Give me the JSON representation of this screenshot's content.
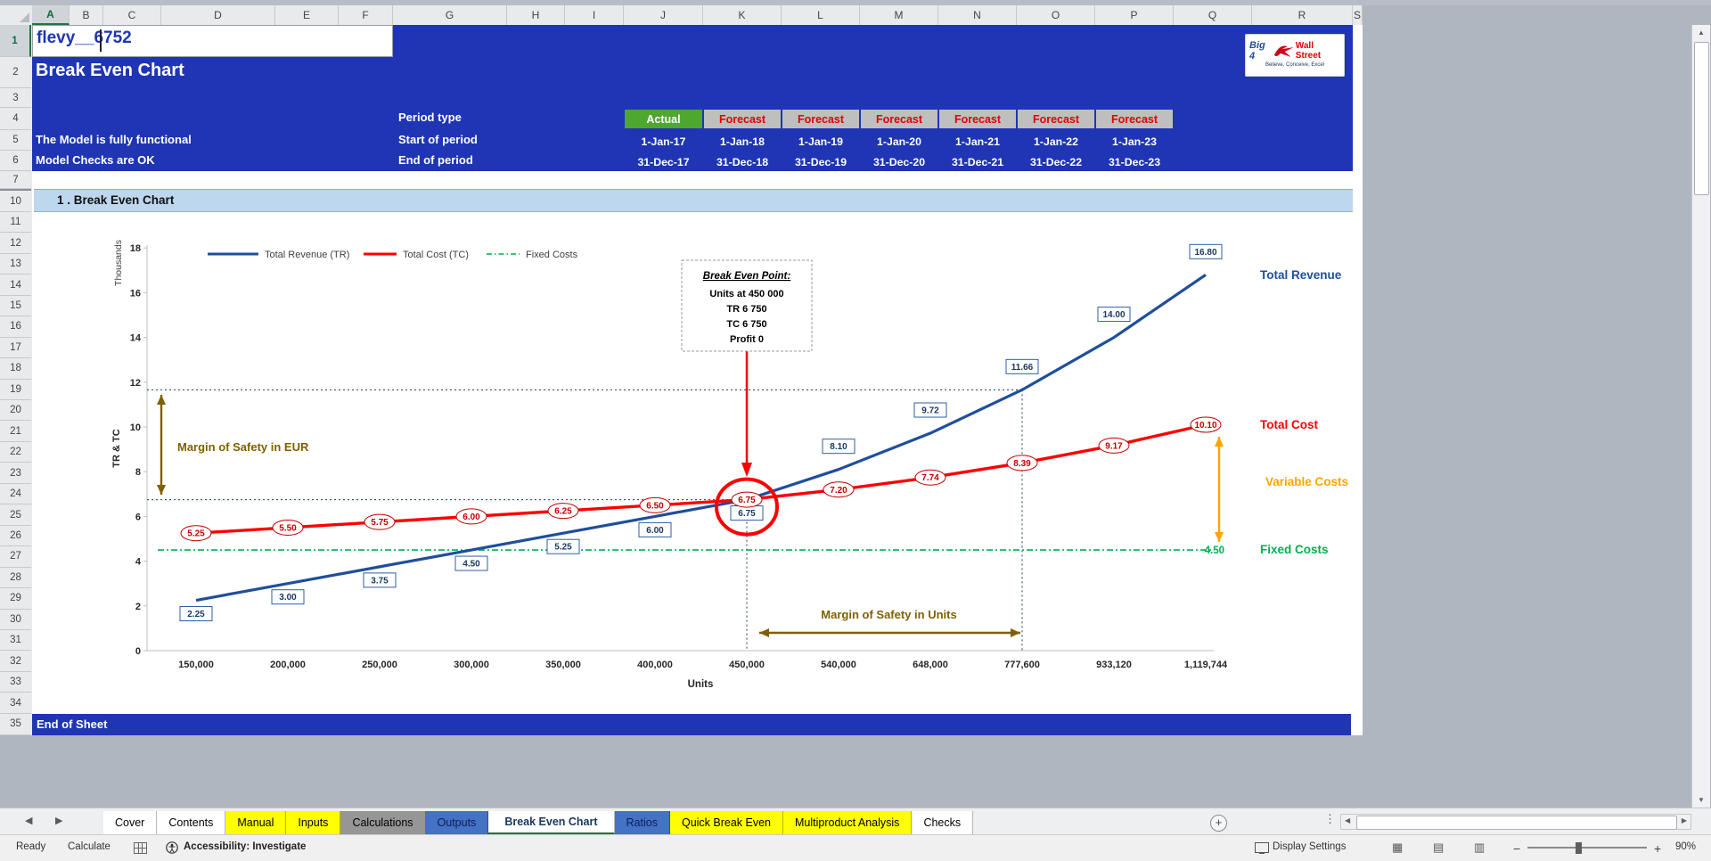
{
  "grid": {
    "columns": [
      "A",
      "B",
      "C",
      "D",
      "E",
      "F",
      "G",
      "H",
      "I",
      "J",
      "K",
      "L",
      "M",
      "N",
      "O",
      "P",
      "Q",
      "R",
      "S"
    ],
    "rows": [
      "1",
      "2",
      "3",
      "4",
      "5",
      "6",
      "7",
      "10",
      "11",
      "12",
      "13",
      "14",
      "15",
      "16",
      "17",
      "18",
      "19",
      "20",
      "21",
      "22",
      "23",
      "24",
      "25",
      "26",
      "27",
      "28",
      "29",
      "30",
      "31",
      "32",
      "33",
      "34",
      "35"
    ]
  },
  "header": {
    "cell_a1": "flevy__6752",
    "sheet_title": "Break Even Chart",
    "model_status": "The Model is fully functional",
    "checks_status": "Model Checks are OK",
    "period_type_label": "Period type",
    "start_label": "Start of period",
    "end_label": "End of period",
    "period_types": [
      "Actual",
      "Forecast",
      "Forecast",
      "Forecast",
      "Forecast",
      "Forecast",
      "Forecast"
    ],
    "period_start": [
      "1-Jan-17",
      "1-Jan-18",
      "1-Jan-19",
      "1-Jan-20",
      "1-Jan-21",
      "1-Jan-22",
      "1-Jan-23"
    ],
    "period_end": [
      "31-Dec-17",
      "31-Dec-18",
      "31-Dec-19",
      "31-Dec-20",
      "31-Dec-21",
      "31-Dec-22",
      "31-Dec-23"
    ]
  },
  "logo": {
    "top": "Big 4",
    "right": "Wall Street",
    "tagline": "Believe, Conceive, Excel"
  },
  "section": {
    "title": "1 . Break Even Chart"
  },
  "footer_row": {
    "label": "End of Sheet"
  },
  "chart_data": {
    "type": "line",
    "categories": [
      "150,000",
      "200,000",
      "250,000",
      "300,000",
      "350,000",
      "400,000",
      "450,000",
      "540,000",
      "648,000",
      "777,600",
      "933,120",
      "1,119,744"
    ],
    "series": [
      {
        "name": "Total Revenue (TR)",
        "color": "#1F4E9C",
        "values": [
          2.25,
          3.0,
          3.75,
          4.5,
          5.25,
          6.0,
          6.75,
          8.1,
          9.72,
          11.66,
          14.0,
          16.8
        ]
      },
      {
        "name": "Total Cost (TC)",
        "color": "#FF0000",
        "values": [
          5.25,
          5.5,
          5.75,
          6.0,
          6.25,
          6.5,
          6.75,
          7.2,
          7.74,
          8.39,
          9.17,
          10.1
        ]
      },
      {
        "name": "Fixed Costs",
        "color": "#00B050",
        "constant_value": 4.5
      }
    ],
    "ylim": [
      0,
      18
    ],
    "yticks": [
      0,
      2,
      4,
      6,
      8,
      10,
      12,
      14,
      16,
      18
    ],
    "ylabel": "TR & TC",
    "y_units_label": "Thousands",
    "xlabel": "Units",
    "legend_position": "top",
    "grid": false,
    "annotations": {
      "break_even_title": "Break Even Point:",
      "break_even_lines": [
        "Units at 450 000",
        "TR 6 750",
        "TC 6 750",
        "Profit 0"
      ],
      "break_even_index": 6,
      "margin_eur_label": "Margin of Safety in EUR",
      "margin_units_label": "Margin of Safety in Units",
      "fixed_costs_value_label": "4.50",
      "right_labels": [
        {
          "text": "Total Revenue",
          "color": "#1F4E9C"
        },
        {
          "text": "Total Cost",
          "color": "#FF0000"
        },
        {
          "text": "Variable Costs",
          "color": "#FFA500"
        },
        {
          "text": "Fixed Costs",
          "color": "#00B050"
        }
      ]
    }
  },
  "tabs": {
    "items": [
      {
        "label": "Cover",
        "bg": "#FFFFFF",
        "fg": "#000000",
        "active": false
      },
      {
        "label": "Contents",
        "bg": "#FFFFFF",
        "fg": "#000000",
        "active": false
      },
      {
        "label": "Manual",
        "bg": "#FFFF00",
        "fg": "#000000",
        "active": false
      },
      {
        "label": "Inputs",
        "bg": "#FFFF00",
        "fg": "#000000",
        "active": false
      },
      {
        "label": "Calculations",
        "bg": "#969696",
        "fg": "#000000",
        "active": false
      },
      {
        "label": "Outputs",
        "bg": "#4472C4",
        "fg": "#0A1F5C",
        "active": false
      },
      {
        "label": "Break Even Chart",
        "bg": "#FFFFFF",
        "fg": "#17375E",
        "active": true
      },
      {
        "label": "Ratios",
        "bg": "#4472C4",
        "fg": "#0A1F5C",
        "active": false
      },
      {
        "label": "Quick Break Even",
        "bg": "#FFFF00",
        "fg": "#000000",
        "active": false
      },
      {
        "label": "Multiproduct Analysis",
        "bg": "#FFFF00",
        "fg": "#000000",
        "active": false
      },
      {
        "label": "Checks",
        "bg": "#FFFFFF",
        "fg": "#000000",
        "active": false
      }
    ]
  },
  "statusbar": {
    "ready": "Ready",
    "calculate": "Calculate",
    "accessibility": "Accessibility: Investigate",
    "display_settings": "Display Settings",
    "zoom_level": "90%"
  }
}
